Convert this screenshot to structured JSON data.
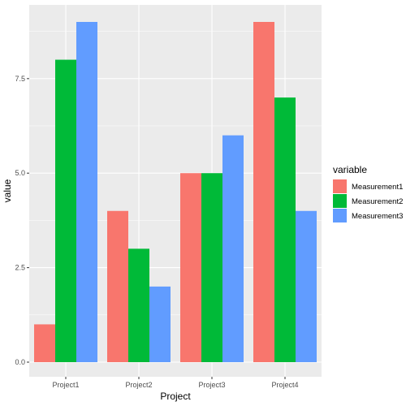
{
  "chart_data": {
    "type": "bar",
    "xlabel": "Project",
    "ylabel": "value",
    "categories": [
      "Project1",
      "Project2",
      "Project3",
      "Project4"
    ],
    "series": [
      {
        "name": "Measurement1",
        "values": [
          1,
          4,
          5,
          9
        ]
      },
      {
        "name": "Measurement2",
        "values": [
          8,
          3,
          5,
          7
        ]
      },
      {
        "name": "Measurement3",
        "values": [
          9,
          2,
          6,
          4
        ]
      }
    ],
    "ylim": [
      0,
      9.45
    ],
    "yticks": [
      0,
      2.5,
      5,
      7.5
    ],
    "ytick_labels": [
      "0.0",
      "2.5",
      "5.0",
      "7.5"
    ],
    "grid": true,
    "legend": {
      "title": "variable",
      "position": "right"
    },
    "colors": [
      "#F8766D",
      "#00BA38",
      "#619CFF"
    ],
    "panel_background": "#EBEBEB"
  }
}
